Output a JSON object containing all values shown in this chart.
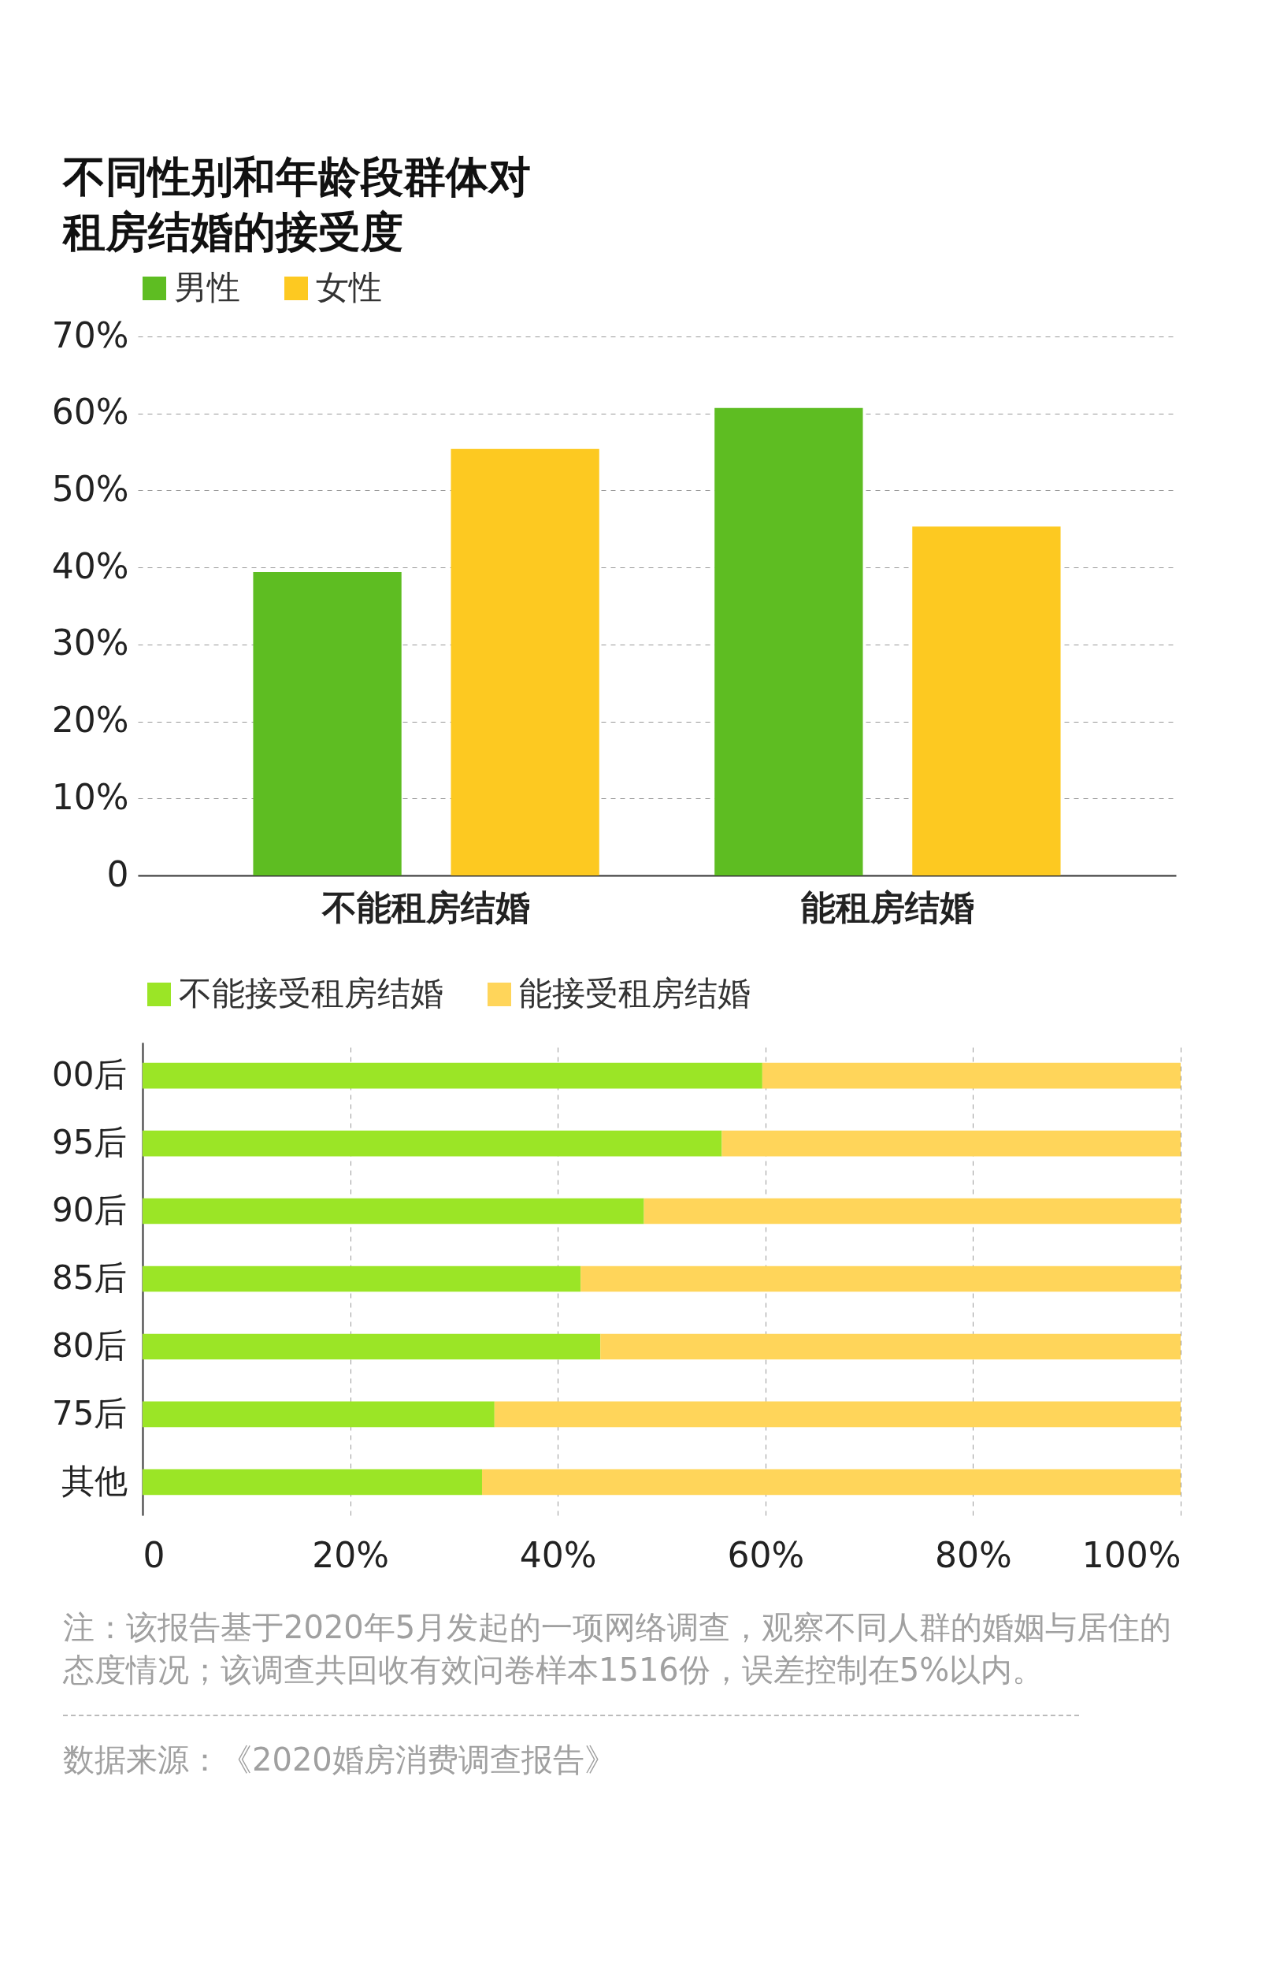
{
  "chart_data": [
    {
      "type": "bar",
      "title": "不同性别和年龄段群体对租房结婚的接受度",
      "categories": [
        "不能租房结婚",
        "能租房结婚"
      ],
      "series": [
        {
          "name": "男性",
          "color": "#5ebd22",
          "values": [
            39.4,
            60.7
          ]
        },
        {
          "name": "女性",
          "color": "#fdc921",
          "values": [
            55.4,
            45.3
          ]
        }
      ],
      "ylim": [
        0,
        70
      ],
      "yticks": [
        0,
        {
          "value": 10,
          "label": "10%"
        },
        {
          "value": 20,
          "label": "20%"
        },
        {
          "value": 30,
          "label": "30%"
        },
        {
          "value": 40,
          "label": "40%"
        },
        {
          "value": 50,
          "label": "50%"
        },
        {
          "value": 60,
          "label": "60%"
        },
        {
          "value": 70,
          "label": "70%"
        }
      ],
      "grid": "y",
      "legend": "top left"
    },
    {
      "type": "bar",
      "orientation": "horizontal",
      "stacked": true,
      "categories": [
        "00后",
        "95后",
        "90后",
        "85后",
        "80后",
        "75后",
        "其他"
      ],
      "series": [
        {
          "name": "不能接受租房结婚",
          "color": "#9be526",
          "values": [
            59.7,
            55.8,
            48.3,
            42.2,
            44.1,
            33.9,
            32.7
          ]
        },
        {
          "name": "能接受租房结婚",
          "color": "#ffd55a",
          "values": [
            40.3,
            44.2,
            51.7,
            57.8,
            55.9,
            66.1,
            67.3
          ]
        }
      ],
      "xlim": [
        0,
        100
      ],
      "xticks": [
        0,
        {
          "value": 20,
          "label": "20%"
        },
        {
          "value": 40,
          "label": "40%"
        },
        {
          "value": 60,
          "label": "60%"
        },
        {
          "value": 80,
          "label": "80%"
        },
        {
          "value": 100,
          "label": "100%"
        }
      ],
      "grid": "x",
      "legend": "top left",
      "annotations": [
        "注：该报告基于2020年5月发起的一项网络调查，观察不同人群的婚姻与居住的态度情况；该调查共回收有效问卷样本1516份，误差控制在5%以内。",
        "数据来源：《2020婚房消费调查报告》"
      ]
    }
  ]
}
